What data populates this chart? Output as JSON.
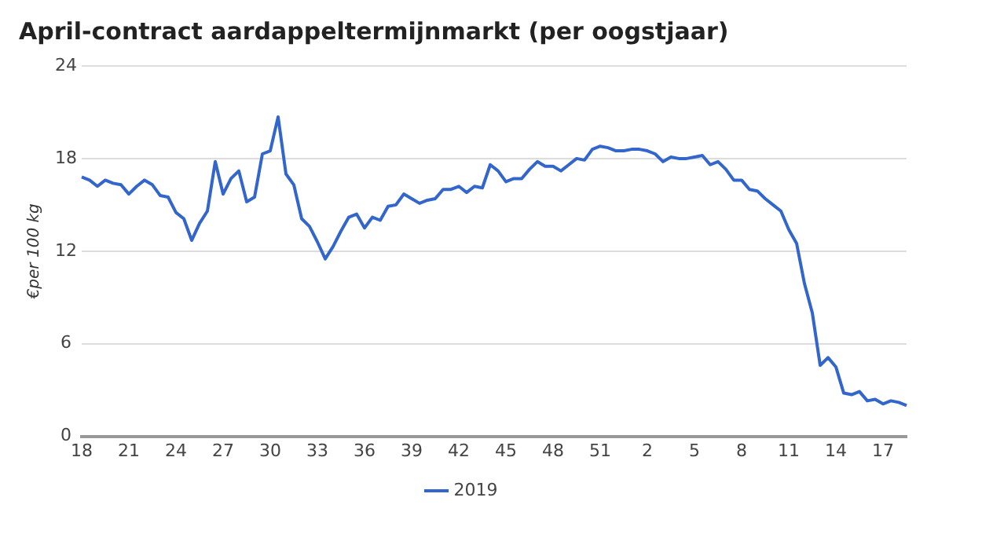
{
  "chart_data": {
    "type": "line",
    "title": "April-contract aardappeltermijnmarkt (per oogstjaar)",
    "ylabel": "€per 100 kg",
    "categories": [
      "18",
      null,
      null,
      null,
      null,
      null,
      "21",
      null,
      null,
      null,
      null,
      null,
      "24",
      null,
      null,
      null,
      null,
      null,
      "27",
      null,
      null,
      null,
      null,
      null,
      "30",
      null,
      null,
      null,
      null,
      null,
      "33",
      null,
      null,
      null,
      null,
      null,
      "36",
      null,
      null,
      null,
      null,
      null,
      "39",
      null,
      null,
      null,
      null,
      null,
      "42",
      null,
      null,
      null,
      null,
      null,
      "45",
      null,
      null,
      null,
      null,
      null,
      "48",
      null,
      null,
      null,
      null,
      null,
      "51",
      null,
      null,
      null,
      null,
      null,
      "2",
      null,
      null,
      null,
      null,
      null,
      "5",
      null,
      null,
      null,
      null,
      null,
      "8",
      null,
      null,
      null,
      null,
      null,
      "11",
      null,
      null,
      null,
      null,
      null,
      "14",
      null,
      null,
      null,
      null,
      null,
      "17",
      null,
      null,
      null
    ],
    "ylim": [
      0,
      24
    ],
    "yticks": [
      0,
      6,
      12,
      18,
      24
    ],
    "grid": "y",
    "legend": "bottom",
    "series": [
      {
        "name": "2019",
        "color": "#3366cc",
        "values": [
          16.8,
          16.6,
          16.2,
          16.6,
          16.4,
          16.3,
          15.7,
          16.2,
          16.6,
          16.3,
          15.6,
          15.5,
          14.5,
          14.1,
          12.7,
          13.8,
          14.6,
          17.8,
          15.7,
          16.7,
          17.2,
          15.2,
          15.5,
          18.3,
          18.5,
          20.7,
          17.0,
          16.3,
          14.1,
          13.6,
          12.6,
          11.5,
          12.3,
          13.3,
          14.2,
          14.4,
          13.5,
          14.2,
          14.0,
          14.9,
          15.0,
          15.7,
          15.4,
          15.1,
          15.3,
          15.4,
          16.0,
          16.0,
          16.2,
          15.8,
          16.2,
          16.1,
          17.6,
          17.2,
          16.5,
          16.7,
          16.7,
          17.3,
          17.8,
          17.5,
          17.5,
          17.2,
          17.6,
          18.0,
          17.9,
          18.6,
          18.8,
          18.7,
          18.5,
          18.5,
          18.6,
          18.6,
          18.5,
          18.3,
          17.8,
          18.1,
          18.0,
          18.0,
          18.1,
          18.2,
          17.6,
          17.8,
          17.3,
          16.6,
          16.6,
          16.0,
          15.9,
          15.4,
          15.0,
          14.6,
          13.4,
          12.5,
          9.9,
          8.0,
          4.6,
          5.1,
          4.5,
          2.8,
          2.7,
          2.9,
          2.3,
          2.4,
          2.1,
          2.3,
          2.2,
          2.0
        ]
      }
    ]
  }
}
